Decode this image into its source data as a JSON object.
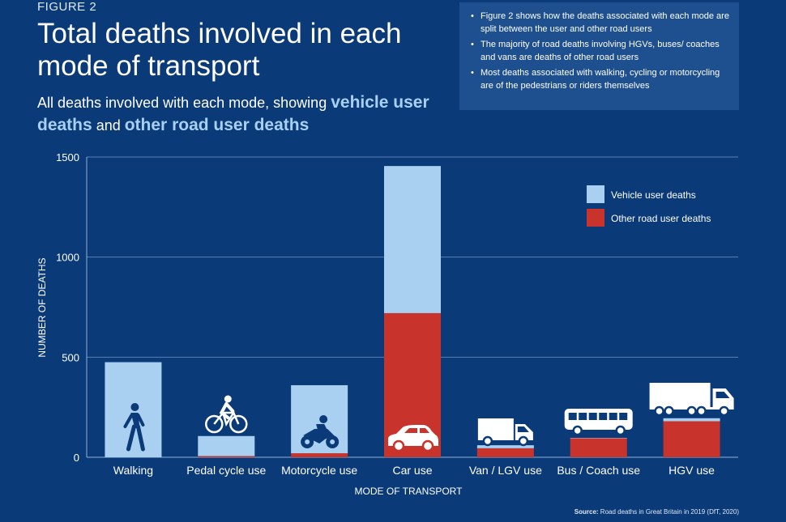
{
  "header": {
    "figure_label": "FIGURE 2",
    "title": "Total deaths involved in each mode of transport",
    "subtitle_prefix": "All deaths involved with each mode, showing ",
    "subtitle_hl1": "vehicle user deaths",
    "subtitle_mid": " and ",
    "subtitle_hl2": "other road user deaths"
  },
  "notes": [
    "Figure 2 shows how the deaths associated with each mode are split between the user and other road users",
    "The majority of road deaths involving HGVs, buses/ coaches and vans are deaths of other road users",
    "Most deaths associated with walking, cycling or motorcycling are of the pedestrians or riders themselves"
  ],
  "source": {
    "label": "Source:",
    "text": " Road deaths in Great Britain in 2019 (DfT, 2020)"
  },
  "colors": {
    "background": "#0a3a78",
    "vehicle_user": "#a9d0f1",
    "other_road_user": "#c8342c",
    "gridline": "#5b80b4"
  },
  "chart_data": {
    "type": "bar",
    "stacked": true,
    "categories": [
      "Walking",
      "Pedal cycle use",
      "Motorcycle use",
      "Car use",
      "Van / LGV use",
      "Bus / Coach use",
      "HGV use"
    ],
    "icons": [
      "pedestrian-icon",
      "bicycle-icon",
      "motorcycle-icon",
      "car-icon",
      "van-icon",
      "bus-icon",
      "truck-icon"
    ],
    "series": [
      {
        "name": "Other road user deaths",
        "values": [
          0,
          6,
          20,
          720,
          45,
          95,
          180
        ]
      },
      {
        "name": "Vehicle user deaths",
        "values": [
          475,
          100,
          340,
          735,
          15,
          2,
          15
        ]
      }
    ],
    "xlabel": "MODE OF TRANSPORT",
    "ylabel": "NUMBER OF DEATHS",
    "ylim": [
      0,
      1500
    ],
    "yticks": [
      0,
      500,
      1000,
      1500
    ],
    "grid": true,
    "legend_position": "top-right"
  }
}
